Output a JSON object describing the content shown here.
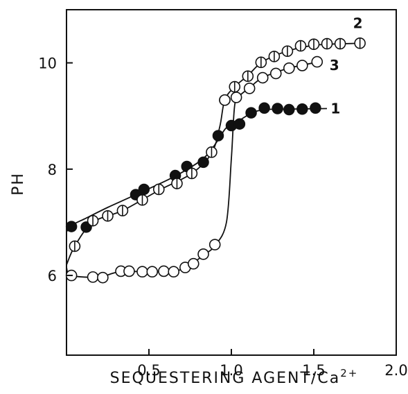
{
  "chart_data": {
    "type": "scatter",
    "title": "",
    "xlabel": "SEQUESTERING AGENT/Ca",
    "xlabel_superscript": "2+",
    "ylabel": "PH",
    "xlim": [
      0,
      2.0
    ],
    "ylim": [
      4.5,
      11.0
    ],
    "xticks": [
      {
        "value": 0.5,
        "label": "0.5"
      },
      {
        "value": 1.0,
        "label": "1.0"
      },
      {
        "value": 1.5,
        "label": "1.5"
      },
      {
        "value": 2.0,
        "label": "2.0"
      }
    ],
    "yticks": [
      {
        "value": 6,
        "label": "6"
      },
      {
        "value": 8,
        "label": "8"
      },
      {
        "value": 10,
        "label": "10"
      }
    ],
    "grid": false,
    "series": [
      {
        "name": "1",
        "marker": "filled-circle",
        "x": [
          0.03,
          0.12,
          0.42,
          0.47,
          0.66,
          0.73,
          0.83,
          0.92,
          1.0,
          1.05,
          1.12,
          1.2,
          1.28,
          1.35,
          1.43,
          1.51
        ],
        "y": [
          6.92,
          6.91,
          7.52,
          7.62,
          7.88,
          8.05,
          8.13,
          8.63,
          8.82,
          8.85,
          9.06,
          9.15,
          9.14,
          9.12,
          9.13,
          9.15
        ],
        "curve_x": [
          0.0,
          0.03,
          0.12,
          0.25,
          0.42,
          0.66,
          0.83,
          0.92,
          0.97,
          1.05,
          1.12,
          1.2,
          1.35,
          1.58
        ],
        "curve_y": [
          6.82,
          6.94,
          7.08,
          7.28,
          7.52,
          7.87,
          8.2,
          8.55,
          8.78,
          8.92,
          9.05,
          9.12,
          9.13,
          9.14
        ]
      },
      {
        "name": "2",
        "marker": "half-circle",
        "x": [
          0.05,
          0.16,
          0.25,
          0.34,
          0.46,
          0.56,
          0.67,
          0.76,
          0.88,
          0.96,
          1.02,
          1.1,
          1.18,
          1.26,
          1.34,
          1.42,
          1.5,
          1.58,
          1.66,
          1.78
        ],
        "y": [
          6.55,
          7.03,
          7.12,
          7.22,
          7.42,
          7.62,
          7.73,
          7.92,
          8.32,
          9.3,
          9.55,
          9.75,
          10.01,
          10.12,
          10.22,
          10.32,
          10.35,
          10.36,
          10.36,
          10.37
        ],
        "curve_x": [
          0.0,
          0.05,
          0.16,
          0.34,
          0.56,
          0.76,
          0.88,
          0.93,
          0.96,
          1.02,
          1.1,
          1.18,
          1.3,
          1.5,
          1.8
        ],
        "curve_y": [
          6.2,
          6.55,
          7.0,
          7.22,
          7.6,
          7.92,
          8.3,
          8.8,
          9.3,
          9.55,
          9.76,
          10.0,
          10.18,
          10.33,
          10.37
        ]
      },
      {
        "name": "3",
        "marker": "open-circle",
        "x": [
          0.03,
          0.16,
          0.22,
          0.33,
          0.38,
          0.46,
          0.52,
          0.59,
          0.65,
          0.72,
          0.77,
          0.83,
          0.9,
          0.96,
          1.03,
          1.11,
          1.19,
          1.27,
          1.35,
          1.43,
          1.52
        ],
        "y": [
          6.0,
          5.97,
          5.96,
          6.08,
          6.08,
          6.07,
          6.07,
          6.08,
          6.07,
          6.15,
          6.22,
          6.4,
          6.58,
          9.3,
          9.35,
          9.52,
          9.72,
          9.8,
          9.9,
          9.95,
          10.02
        ],
        "curve_x": [
          0.0,
          0.03,
          0.2,
          0.33,
          0.6,
          0.72,
          0.83,
          0.9,
          0.97,
          1.0,
          1.02,
          1.05,
          1.11,
          1.19,
          1.35,
          1.55
        ],
        "curve_y": [
          6.15,
          6.0,
          5.97,
          6.07,
          6.07,
          6.14,
          6.38,
          6.56,
          7.0,
          8.2,
          9.2,
          9.38,
          9.53,
          9.72,
          9.9,
          10.03
        ]
      }
    ]
  }
}
